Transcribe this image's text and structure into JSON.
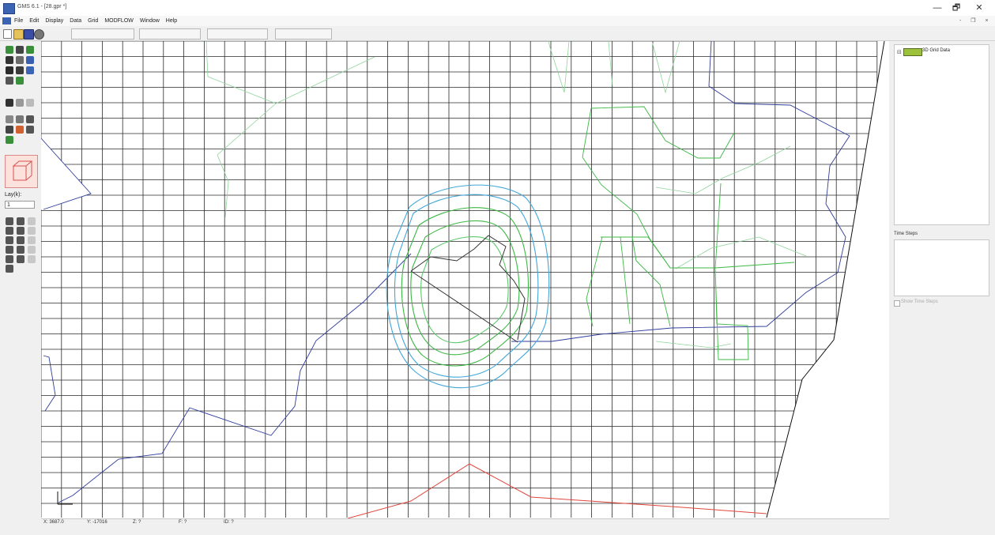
{
  "window": {
    "title": "GMS 6.1 - [28.gpr *]",
    "minimize": "—",
    "maximize": "🗗",
    "close": "✕"
  },
  "menu": {
    "items": [
      "File",
      "Edit",
      "Display",
      "Data",
      "Grid",
      "MODFLOW",
      "Window",
      "Help"
    ],
    "mdi_controls": "- ❐ ×"
  },
  "palette": {
    "layer_label": "Lay(k):",
    "layer_value": "1"
  },
  "tree": {
    "expander": "⊟",
    "item_label": "3D Grid Data"
  },
  "time_steps": {
    "label": "Time Steps",
    "checkbox_label": "Show Time Steps"
  },
  "status": {
    "x": "X: 3687.0",
    "y": "Y: -17016",
    "z": "Z: ?",
    "f": "F: ?",
    "id": "ID: ?"
  },
  "colors": {
    "grid_lines": "#2a2a2a",
    "boundary_blue": "#2e3d9c",
    "head_contours_blue": "#43a6d8",
    "head_contours_green": "#3db845",
    "light_green_arcs": "#8fd49a",
    "red_arc": "#e0463c",
    "tree_item_icon": "#9cc23c"
  },
  "icons": {
    "app": "gms-app-icon",
    "toolbar": [
      "new-file-icon",
      "open-folder-icon",
      "save-icon",
      "print-icon"
    ],
    "grid_3d": "3d-grid-cube-icon",
    "tree_item": "grid-data-icon"
  }
}
